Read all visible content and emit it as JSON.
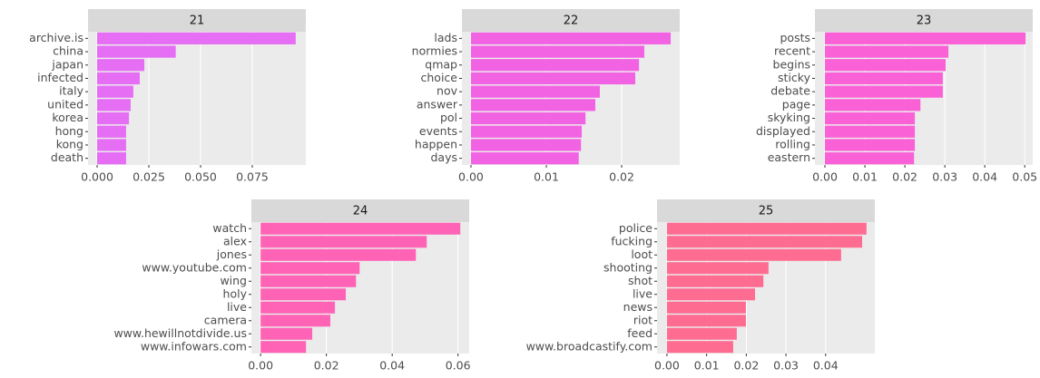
{
  "chart_data": [
    {
      "type": "bar",
      "orientation": "horizontal",
      "title": "21",
      "color": "#e56ef4",
      "categories": [
        "archive.is",
        "china",
        "japan",
        "infected",
        "italy",
        "united",
        "korea",
        "hong",
        "kong",
        "death"
      ],
      "values": [
        0.096,
        0.038,
        0.0228,
        0.0206,
        0.0175,
        0.0162,
        0.0154,
        0.014,
        0.014,
        0.014
      ],
      "xlim": [
        -0.0044,
        0.1009
      ],
      "xticks": [
        {
          "value": 0,
          "label": "0.000"
        },
        0.025,
        {
          "value": 0.05,
          "label": "0.050"
        },
        0.075
      ],
      "grid": true
    },
    {
      "type": "bar",
      "orientation": "horizontal",
      "title": "22",
      "color": "#f263e4",
      "categories": [
        "lads",
        "normies",
        "qmap",
        "choice",
        "nov",
        "answer",
        "pol",
        "events",
        "happen",
        "days"
      ],
      "values": [
        0.0265,
        0.023,
        0.0223,
        0.0218,
        0.0171,
        0.0165,
        0.0152,
        0.0147,
        0.0146,
        0.0143
      ],
      "xlim": [
        -0.0012,
        0.0277
      ],
      "xticks": [
        {
          "value": 0,
          "label": "0.00"
        },
        0.01,
        0.02
      ],
      "grid": true
    },
    {
      "type": "bar",
      "orientation": "horizontal",
      "title": "23",
      "color": "#fb61d7",
      "categories": [
        "posts",
        "recent",
        "begins",
        "sticky",
        "debate",
        "page",
        "skyking",
        "displayed",
        "rolling",
        "eastern"
      ],
      "values": [
        0.0502,
        0.0309,
        0.0302,
        0.0295,
        0.0295,
        0.0239,
        0.0225,
        0.0225,
        0.0225,
        0.0223
      ],
      "xlim": [
        -0.0025,
        0.052
      ],
      "xticks": [
        {
          "value": 0,
          "label": "0.00"
        },
        0.01,
        0.02,
        0.03,
        0.04,
        0.05
      ],
      "grid": true
    },
    {
      "type": "bar",
      "orientation": "horizontal",
      "title": "24",
      "color": "#ff63b6",
      "categories": [
        "watch",
        "alex",
        "jones",
        "www.youtube.com",
        "wing",
        "holy",
        "live",
        "camera",
        "www.hewillnotdivide.us",
        "www.infowars.com"
      ],
      "values": [
        0.0607,
        0.0505,
        0.0472,
        0.0301,
        0.029,
        0.0259,
        0.0226,
        0.0212,
        0.0157,
        0.0138
      ],
      "xlim": [
        -0.0028,
        0.0634
      ],
      "xticks": [
        {
          "value": 0,
          "label": "0.00"
        },
        0.02,
        0.04,
        0.06
      ],
      "grid": true
    },
    {
      "type": "bar",
      "orientation": "horizontal",
      "title": "25",
      "color": "#ff6c92",
      "categories": [
        "police",
        "fucking",
        "loot",
        "shooting",
        "shot",
        "live",
        "news",
        "riot",
        "feed",
        "www.broadcastify.com"
      ],
      "values": [
        0.0503,
        0.0492,
        0.0439,
        0.0256,
        0.0243,
        0.0222,
        0.0199,
        0.0199,
        0.0176,
        0.0167
      ],
      "xlim": [
        -0.0025,
        0.0524
      ],
      "xticks": [
        {
          "value": 0,
          "label": "0.00"
        },
        0.01,
        0.02,
        0.03,
        0.04
      ],
      "grid": true
    }
  ]
}
